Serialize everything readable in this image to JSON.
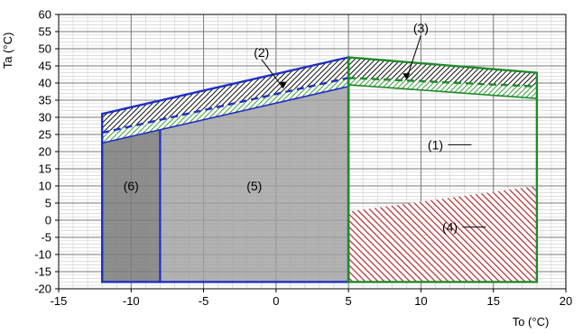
{
  "chart_data": {
    "type": "area",
    "xlabel": "To (°C)",
    "ylabel": "Ta (°C)",
    "xlim": [
      -15,
      20
    ],
    "ylim": [
      -20,
      60
    ],
    "x_ticks": [
      -15,
      -10,
      -5,
      0,
      5,
      10,
      15,
      20
    ],
    "y_ticks": [
      -20,
      -15,
      -10,
      -5,
      0,
      5,
      10,
      15,
      20,
      25,
      30,
      35,
      40,
      45,
      50,
      55,
      60
    ],
    "grid": true,
    "colors": {
      "heating_outline": "#1f2fc4",
      "cooling_outline": "#1f8a2a",
      "heating_fill": "#9f9f9f",
      "heating_fill_dark": "#7a7a7a",
      "region4_hatch": "#b22a2a",
      "green_hatch": "#3c9a3c"
    },
    "regions": [
      {
        "id": "1",
        "label": "(1)",
        "label_pos": [
          11,
          22
        ],
        "leader_to": [
          10.2,
          22
        ],
        "polygon": [
          [
            5,
            -18
          ],
          [
            5,
            47.5
          ],
          [
            18,
            43
          ],
          [
            18,
            -18
          ]
        ]
      },
      {
        "id": "2",
        "label": "(2)",
        "label_pos": [
          -1,
          49
        ],
        "leader_to": [
          0.5,
          38.5
        ]
      },
      {
        "id": "3",
        "label": "(3)",
        "label_pos": [
          10,
          56
        ],
        "leader_to": [
          9,
          41
        ]
      },
      {
        "id": "4",
        "label": "(4)",
        "label_pos": [
          12,
          -2
        ],
        "leader_to": [
          11.2,
          -2
        ],
        "polygon": [
          [
            5,
            -18
          ],
          [
            5,
            2.5
          ],
          [
            18,
            10
          ],
          [
            18,
            -18
          ]
        ]
      },
      {
        "id": "5",
        "label": "(5)",
        "label_pos": [
          -1.5,
          10
        ],
        "polygon": [
          [
            -8,
            -18
          ],
          [
            -8,
            27.3
          ],
          [
            5,
            40
          ],
          [
            5,
            -18
          ]
        ]
      },
      {
        "id": "6",
        "label": "(6)",
        "label_pos": [
          -10,
          10
        ],
        "polygon": [
          [
            -12,
            -18
          ],
          [
            -12,
            24
          ],
          [
            -8,
            27.3
          ],
          [
            -8,
            -18
          ]
        ]
      }
    ],
    "series": [
      {
        "style": "heating-upper",
        "x": [
          -12,
          5
        ],
        "y": [
          31,
          47.5
        ]
      },
      {
        "style": "heating-dashed",
        "x": [
          -12,
          5
        ],
        "y": [
          25.5,
          41.5
        ]
      },
      {
        "style": "heating-lower",
        "x": [
          -12,
          5
        ],
        "y": [
          22.5,
          39
        ]
      },
      {
        "style": "cooling-upper",
        "x": [
          5,
          18
        ],
        "y": [
          47.5,
          43
        ]
      },
      {
        "style": "cooling-dashed",
        "x": [
          5,
          18
        ],
        "y": [
          41.5,
          39
        ]
      },
      {
        "style": "cooling-lower",
        "x": [
          5,
          18
        ],
        "y": [
          39.5,
          35.5
        ]
      }
    ]
  }
}
